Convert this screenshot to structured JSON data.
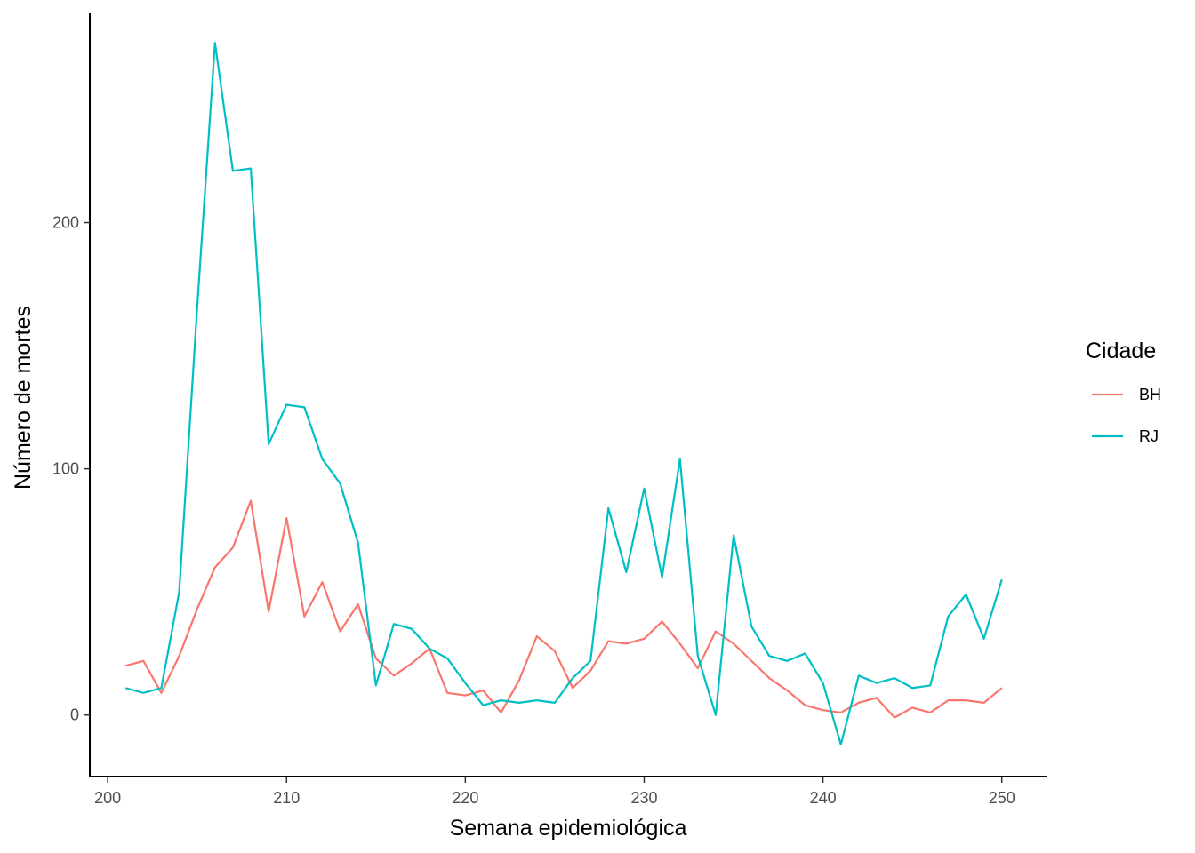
{
  "chart_data": {
    "type": "line",
    "title": "",
    "xlabel": "Semana epidemiológica",
    "ylabel": "Número de mortes",
    "xlim": [
      199,
      252.5
    ],
    "ylim": [
      -25,
      285
    ],
    "x_ticks": [
      200,
      210,
      220,
      230,
      240,
      250
    ],
    "y_ticks": [
      0,
      100,
      200
    ],
    "x_tick_labels": [
      "200",
      "210",
      "220",
      "230",
      "240",
      "250"
    ],
    "y_tick_labels": [
      "0",
      "100",
      "200"
    ],
    "grid": false,
    "legend": {
      "title": "Cidade",
      "placement": "right"
    },
    "x": [
      201,
      202,
      203,
      204,
      205,
      206,
      207,
      208,
      209,
      210,
      211,
      212,
      213,
      214,
      215,
      216,
      217,
      218,
      219,
      220,
      221,
      222,
      223,
      224,
      225,
      226,
      227,
      228,
      229,
      230,
      231,
      232,
      233,
      234,
      235,
      236,
      237,
      238,
      239,
      240,
      241,
      242,
      243,
      244,
      245,
      246,
      247,
      248,
      249,
      250
    ],
    "series": [
      {
        "name": "BH",
        "color": "#F8766D",
        "values": [
          20,
          22,
          9,
          24,
          43,
          60,
          68,
          87,
          42,
          80,
          40,
          54,
          34,
          45,
          23,
          16,
          21,
          27,
          9,
          8,
          10,
          1,
          14,
          32,
          26,
          11,
          18,
          30,
          29,
          31,
          38,
          29,
          19,
          34,
          29,
          22,
          15,
          10,
          4,
          2,
          1,
          5,
          7,
          -1,
          3,
          1,
          6,
          6,
          5,
          11
        ]
      },
      {
        "name": "RJ",
        "color": "#00BFC4",
        "values": [
          11,
          9,
          11,
          50,
          165,
          273,
          221,
          222,
          110,
          126,
          125,
          104,
          94,
          70,
          12,
          37,
          35,
          27,
          23,
          13,
          4,
          6,
          5,
          6,
          5,
          15,
          22,
          84,
          58,
          92,
          56,
          104,
          24,
          0,
          73,
          36,
          24,
          22,
          25,
          13,
          -12,
          16,
          13,
          15,
          11,
          12,
          40,
          49,
          31,
          55
        ]
      }
    ]
  }
}
